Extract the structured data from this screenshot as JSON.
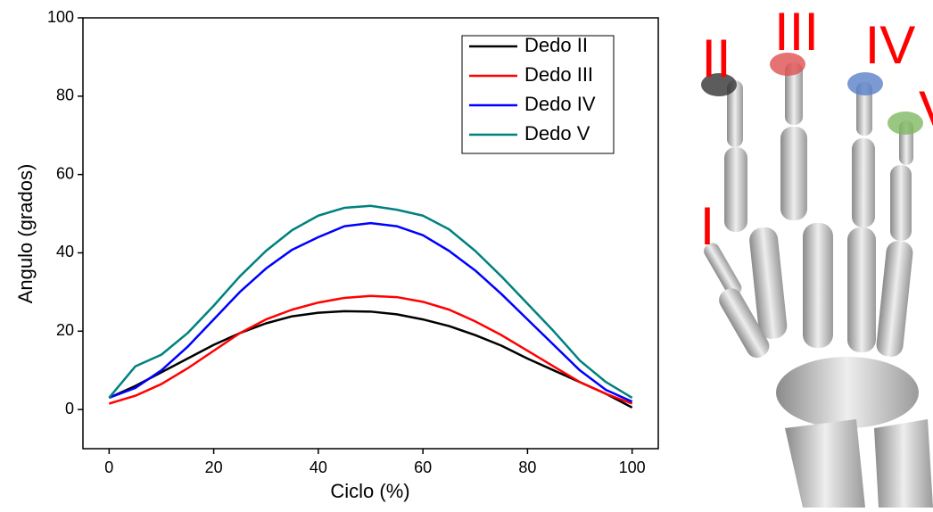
{
  "chart_data": {
    "type": "line",
    "xlabel": "Ciclo (%)",
    "ylabel": "Angulo (grados)",
    "x": [
      0,
      5,
      10,
      15,
      20,
      25,
      30,
      35,
      40,
      45,
      50,
      55,
      60,
      65,
      70,
      75,
      80,
      85,
      90,
      95,
      100
    ],
    "series": [
      {
        "name": "Dedo II",
        "color": "#000000",
        "values": [
          3,
          6,
          9.5,
          13,
          16.5,
          19.5,
          22,
          23.8,
          24.7,
          25.1,
          25,
          24.3,
          23,
          21.3,
          19,
          16.3,
          13,
          10,
          7,
          4,
          0.5
        ]
      },
      {
        "name": "Dedo III",
        "color": "#ff0000",
        "values": [
          1.5,
          3.5,
          6.5,
          10.5,
          15,
          19.5,
          23,
          25.5,
          27.3,
          28.5,
          29,
          28.7,
          27.5,
          25.5,
          22.5,
          19,
          15,
          11,
          7,
          4,
          1.5
        ]
      },
      {
        "name": "Dedo IV",
        "color": "#0000ff",
        "values": [
          3,
          5.5,
          10,
          16,
          23,
          30,
          36,
          40.8,
          44,
          46.8,
          47.6,
          46.8,
          44.5,
          40.5,
          35.5,
          29.5,
          23,
          16.5,
          10,
          5,
          2
        ]
      },
      {
        "name": "Dedo V",
        "color": "#008080",
        "values": [
          3,
          11,
          14,
          19.5,
          26.5,
          34,
          40.5,
          45.8,
          49.5,
          51.5,
          52,
          51,
          49.5,
          46,
          40.5,
          34,
          27,
          20,
          12.5,
          7,
          3
        ]
      }
    ],
    "xlim": [
      -5,
      105
    ],
    "ylim": [
      -10,
      100
    ],
    "xticks": [
      0,
      20,
      40,
      60,
      80,
      100
    ],
    "yticks": [
      0,
      20,
      40,
      60,
      80,
      100
    ],
    "legend": "upper right"
  },
  "figure": {
    "labels": [
      "I",
      "II",
      "III",
      "IV",
      "V"
    ]
  }
}
